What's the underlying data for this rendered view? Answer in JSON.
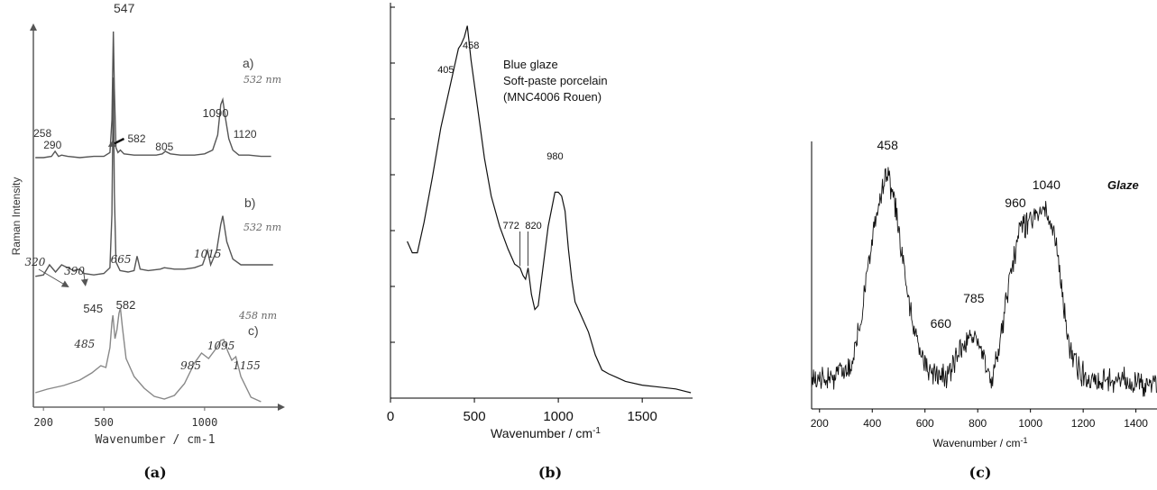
{
  "chart_data": [
    {
      "type": "line",
      "panel_label": "(a)",
      "xlabel": "Wavenumber  /  cm-1",
      "ylabel": "Raman Intensity",
      "xlim": [
        150,
        1390
      ],
      "x_ticks": [
        "200",
        "500",
        "1000"
      ],
      "grid": false,
      "series": [
        {
          "label": "a)",
          "wavelength": "532 nm",
          "color": "#555555",
          "x": [
            160,
            200,
            240,
            258,
            275,
            290,
            320,
            380,
            450,
            500,
            530,
            540,
            547,
            552,
            560,
            570,
            582,
            600,
            650,
            700,
            760,
            790,
            805,
            830,
            880,
            950,
            1000,
            1040,
            1065,
            1080,
            1090,
            1105,
            1120,
            1140,
            1170,
            1220,
            1280,
            1330
          ],
          "y": [
            0.0,
            0.0,
            0.01,
            0.05,
            0.01,
            0.02,
            0.01,
            0.0,
            0.01,
            0.01,
            0.04,
            0.3,
            1.0,
            0.55,
            0.08,
            0.04,
            0.06,
            0.03,
            0.02,
            0.02,
            0.02,
            0.03,
            0.05,
            0.03,
            0.02,
            0.02,
            0.03,
            0.06,
            0.18,
            0.42,
            0.46,
            0.3,
            0.15,
            0.06,
            0.02,
            0.02,
            0.01,
            0.01
          ]
        },
        {
          "label": "b)",
          "wavelength": "532 nm",
          "color": "#555555",
          "x": [
            160,
            200,
            230,
            260,
            290,
            320,
            350,
            380,
            400,
            450,
            500,
            530,
            540,
            547,
            552,
            560,
            580,
            620,
            650,
            665,
            680,
            720,
            780,
            800,
            850,
            900,
            950,
            990,
            1015,
            1030,
            1060,
            1080,
            1090,
            1110,
            1140,
            1180,
            1230,
            1290,
            1340
          ],
          "y": [
            0.02,
            0.03,
            0.1,
            0.05,
            0.1,
            0.08,
            0.06,
            0.07,
            0.04,
            0.03,
            0.04,
            0.08,
            0.45,
            1.4,
            0.6,
            0.12,
            0.06,
            0.05,
            0.06,
            0.16,
            0.07,
            0.06,
            0.07,
            0.08,
            0.07,
            0.07,
            0.08,
            0.1,
            0.2,
            0.1,
            0.2,
            0.38,
            0.44,
            0.26,
            0.14,
            0.1,
            0.1,
            0.1,
            0.1
          ]
        },
        {
          "label": "c)",
          "wavelength": "458 nm",
          "color": "#888888",
          "x": [
            160,
            220,
            300,
            380,
            440,
            485,
            510,
            530,
            540,
            545,
            555,
            565,
            575,
            582,
            592,
            610,
            650,
            700,
            750,
            800,
            850,
            900,
            950,
            985,
            1020,
            1060,
            1080,
            1095,
            1115,
            1135,
            1155,
            1180,
            1230,
            1280
          ],
          "y": [
            0.12,
            0.16,
            0.2,
            0.26,
            0.34,
            0.42,
            0.4,
            0.62,
            0.9,
            0.98,
            0.72,
            0.82,
            1.0,
            1.06,
            0.85,
            0.5,
            0.3,
            0.17,
            0.08,
            0.05,
            0.09,
            0.22,
            0.45,
            0.56,
            0.5,
            0.62,
            0.7,
            0.71,
            0.58,
            0.48,
            0.52,
            0.3,
            0.07,
            0.02
          ]
        }
      ],
      "peak_labels": [
        {
          "series": 0,
          "text": "547",
          "x": 547
        },
        {
          "series": 0,
          "text": "258",
          "x": 258
        },
        {
          "series": 0,
          "text": "290",
          "x": 290
        },
        {
          "series": 0,
          "text": "582",
          "x": 582
        },
        {
          "series": 0,
          "text": "805",
          "x": 805
        },
        {
          "series": 0,
          "text": "1090",
          "x": 1090
        },
        {
          "series": 0,
          "text": "1120",
          "x": 1120
        },
        {
          "series": 1,
          "text": "320",
          "x": 320
        },
        {
          "series": 1,
          "text": "390",
          "x": 390
        },
        {
          "series": 1,
          "text": "665",
          "x": 665
        },
        {
          "series": 1,
          "text": "1015",
          "x": 1015
        },
        {
          "series": 2,
          "text": "545",
          "x": 545
        },
        {
          "series": 2,
          "text": "582",
          "x": 582
        },
        {
          "series": 2,
          "text": "485",
          "x": 485
        },
        {
          "series": 2,
          "text": "985",
          "x": 985
        },
        {
          "series": 2,
          "text": "1095",
          "x": 1095
        },
        {
          "series": 2,
          "text": "1155",
          "x": 1155
        }
      ]
    },
    {
      "type": "line",
      "panel_label": "(b)",
      "xlabel": "Wavenumber  /  cm",
      "xlabel_sup": "-1",
      "ylabel": "",
      "xlim": [
        0,
        1800
      ],
      "x_ticks": [
        0,
        500,
        1000,
        1500
      ],
      "annotation": [
        "Blue glaze",
        "Soft-paste porcelain",
        "(MNC4006 Rouen)"
      ],
      "grid": false,
      "series": [
        {
          "name": "",
          "x": [
            100,
            130,
            160,
            200,
            250,
            300,
            350,
            380,
            405,
            420,
            440,
            458,
            480,
            520,
            560,
            600,
            650,
            700,
            740,
            772,
            790,
            805,
            820,
            840,
            860,
            880,
            900,
            940,
            980,
            1000,
            1020,
            1040,
            1060,
            1080,
            1100,
            1140,
            1180,
            1220,
            1260,
            1300,
            1350,
            1400,
            1500,
            1600,
            1700,
            1790
          ],
          "y": [
            0.4,
            0.37,
            0.37,
            0.45,
            0.57,
            0.7,
            0.8,
            0.86,
            0.91,
            0.92,
            0.94,
            0.97,
            0.88,
            0.75,
            0.62,
            0.52,
            0.44,
            0.38,
            0.34,
            0.33,
            0.31,
            0.3,
            0.33,
            0.26,
            0.22,
            0.23,
            0.3,
            0.44,
            0.53,
            0.53,
            0.52,
            0.48,
            0.38,
            0.3,
            0.24,
            0.2,
            0.16,
            0.1,
            0.06,
            0.05,
            0.04,
            0.03,
            0.02,
            0.015,
            0.01,
            0.0
          ]
        }
      ],
      "peak_labels": [
        {
          "text": "458",
          "x": 458
        },
        {
          "text": "405",
          "x": 405
        },
        {
          "text": "980",
          "x": 980
        },
        {
          "text": "772",
          "x": 772
        },
        {
          "text": "820",
          "x": 820
        }
      ]
    },
    {
      "type": "line",
      "panel_label": "(c)",
      "xlabel": "Wavenumber  /  cm",
      "xlabel_sup": "-1",
      "ylabel": "",
      "xlim": [
        170,
        1480
      ],
      "x_ticks": [
        200,
        400,
        600,
        800,
        1000,
        1200,
        1400
      ],
      "annotation": "Glaze",
      "grid": false,
      "series": [
        {
          "name": "",
          "noisy": true,
          "x": [
            170,
            250,
            320,
            360,
            400,
            430,
            458,
            480,
            510,
            540,
            570,
            600,
            630,
            660,
            700,
            740,
            785,
            820,
            850,
            880,
            920,
            960,
            1000,
            1040,
            1060,
            1090,
            1120,
            1150,
            1200,
            1300,
            1400,
            1480
          ],
          "y": [
            0.08,
            0.09,
            0.14,
            0.35,
            0.68,
            0.86,
            0.97,
            0.86,
            0.64,
            0.42,
            0.24,
            0.14,
            0.1,
            0.09,
            0.12,
            0.22,
            0.27,
            0.18,
            0.08,
            0.2,
            0.5,
            0.72,
            0.77,
            0.82,
            0.8,
            0.72,
            0.45,
            0.2,
            0.1,
            0.08,
            0.07,
            0.06
          ]
        }
      ],
      "peak_labels": [
        {
          "text": "458",
          "x": 458
        },
        {
          "text": "660",
          "x": 660
        },
        {
          "text": "785",
          "x": 785
        },
        {
          "text": "960",
          "x": 960
        },
        {
          "text": "1040",
          "x": 1040
        }
      ]
    }
  ]
}
